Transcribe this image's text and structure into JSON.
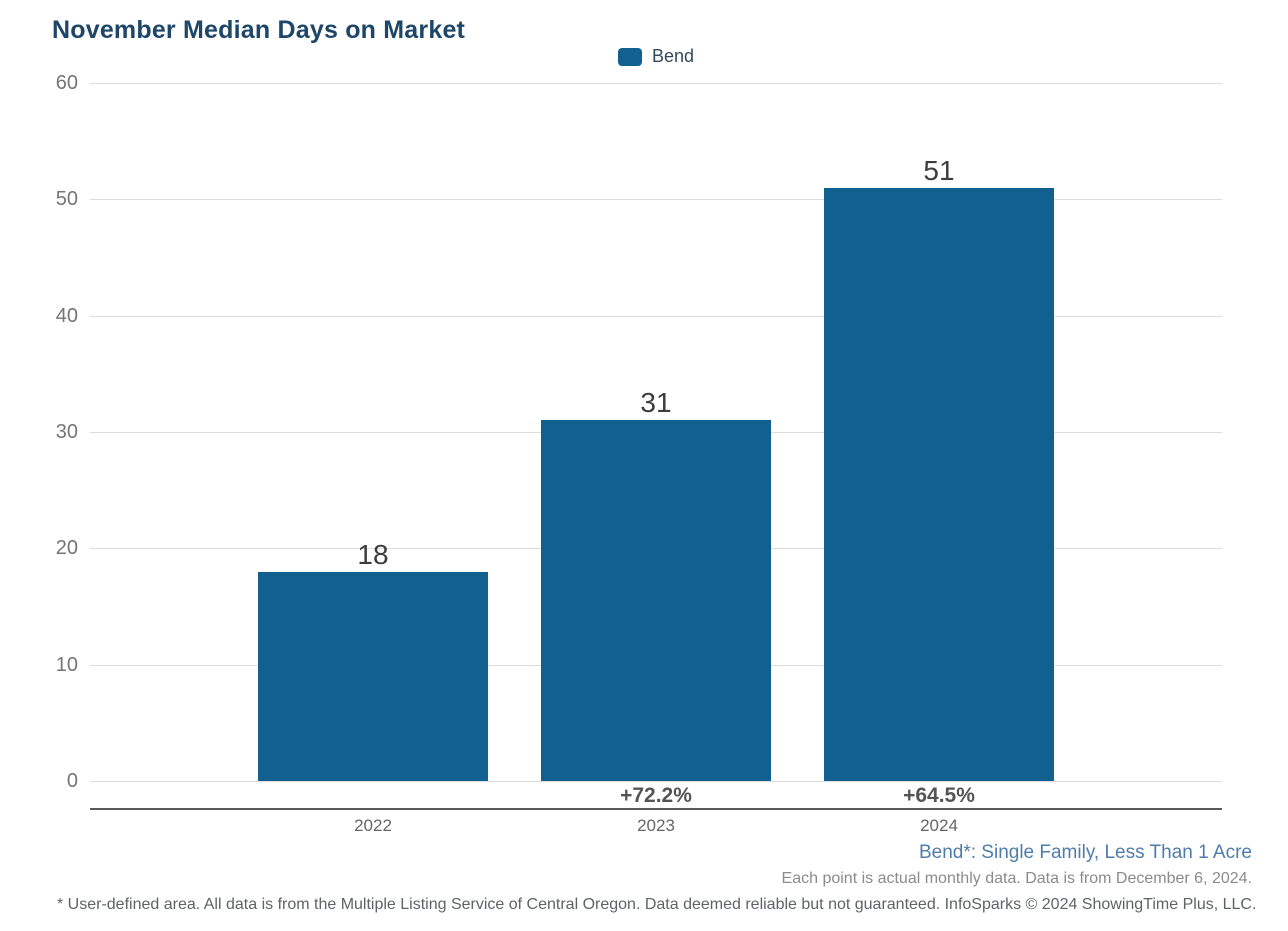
{
  "title": "November Median Days on Market",
  "legend": {
    "label": "Bend"
  },
  "colors": {
    "bar": "#11608f",
    "title": "#1e4668",
    "grid": "#dcdcdc",
    "axis": "#58585a",
    "tick_label": "#757575",
    "value_label": "#3d3d3d",
    "pct_label": "#545454",
    "year_label": "#666666",
    "footnote_blue": "#4e7dab",
    "footnote_gray": "#8b8b8b",
    "disclaimer": "#5f6368"
  },
  "chart_data": {
    "type": "bar",
    "categories": [
      "2022",
      "2023",
      "2024"
    ],
    "series": [
      {
        "name": "Bend",
        "values": [
          18,
          31,
          51
        ]
      }
    ],
    "value_labels": [
      "18",
      "31",
      "51"
    ],
    "pct_change_labels": [
      "",
      "+72.2%",
      "+64.5%"
    ],
    "title": "November Median Days on Market",
    "xlabel": "",
    "ylabel": "",
    "ylim": [
      0,
      60
    ],
    "yticks": [
      0,
      10,
      20,
      30,
      40,
      50,
      60
    ],
    "grid": "horizontal",
    "legend_position": "top-center"
  },
  "footnotes": {
    "series_definition": "Bend*: Single Family, Less Than 1 Acre",
    "data_note": "Each point is actual monthly data. Data is from December 6, 2024.",
    "disclaimer": "* User-defined area. All data is from the Multiple Listing Service of Central Oregon. Data deemed reliable but not guaranteed. InfoSparks © 2024 ShowingTime Plus, LLC."
  }
}
